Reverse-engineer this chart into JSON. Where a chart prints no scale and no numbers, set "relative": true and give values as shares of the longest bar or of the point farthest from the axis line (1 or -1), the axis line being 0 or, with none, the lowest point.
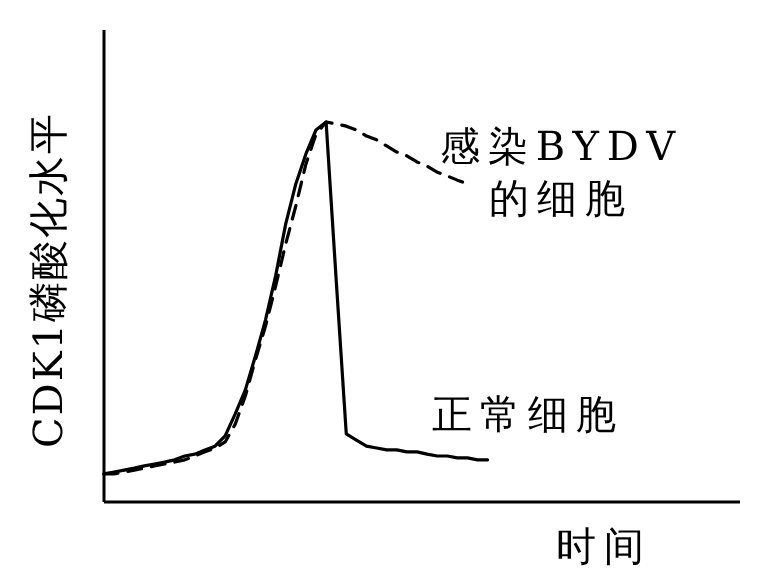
{
  "chart_data": {
    "type": "line",
    "relative": true,
    "ylabel": "CDK1磷酸化水平",
    "xlabel": "时间",
    "legend": false,
    "marker": "none",
    "categories": [
      null,
      null,
      null,
      null,
      null,
      null,
      null,
      null,
      null,
      null,
      null,
      null,
      null,
      null,
      null,
      null,
      null,
      null,
      null,
      null,
      null,
      null,
      null,
      null,
      null,
      null,
      null,
      null,
      null,
      null,
      null,
      null,
      null,
      null,
      null,
      null,
      null,
      null,
      null,
      null,
      null,
      null,
      null,
      null,
      null,
      null,
      null,
      null,
      null,
      null,
      null,
      null,
      null,
      null,
      null,
      null,
      null,
      null,
      null,
      null,
      null,
      null,
      null,
      null
    ],
    "series": [
      {
        "name": "正常细胞",
        "color": "#000000",
        "line_style": "solid",
        "values": [
          0.074,
          0.079,
          0.084,
          0.089,
          0.095,
          0.1,
          0.105,
          0.111,
          0.121,
          0.126,
          0.137,
          0.147,
          0.174,
          0.232,
          0.295,
          0.384,
          0.479,
          0.595,
          0.732,
          0.837,
          0.916,
          0.979,
          1.0,
          0.584,
          0.179,
          0.163,
          0.147,
          0.142,
          0.137,
          0.137,
          0.132,
          0.132,
          0.126,
          0.121,
          0.121,
          0.116,
          0.116,
          0.111,
          0.111,
          null,
          null,
          null,
          null,
          null,
          null,
          null,
          null,
          null,
          null,
          null,
          null,
          null,
          null,
          null,
          null,
          null,
          null,
          null,
          null,
          null,
          null,
          null,
          null,
          null
        ]
      },
      {
        "name": "感染BYDV的细胞",
        "color": "#000000",
        "line_style": "dashed",
        "values": [
          0.074,
          0.074,
          0.079,
          0.084,
          0.089,
          0.095,
          0.1,
          0.105,
          0.111,
          0.121,
          0.132,
          0.142,
          0.158,
          0.205,
          0.279,
          0.374,
          0.463,
          0.568,
          0.679,
          0.779,
          0.889,
          0.968,
          1.0,
          0.995,
          0.989,
          0.979,
          0.963,
          0.953,
          0.937,
          0.921,
          0.911,
          0.895,
          0.884,
          0.868,
          0.858,
          0.847,
          0.837,
          null,
          null,
          null,
          null,
          null,
          null,
          null,
          null,
          null,
          null,
          null,
          null,
          null,
          null,
          null,
          null,
          null,
          null,
          null,
          null,
          null,
          null,
          null,
          null,
          null,
          null,
          null
        ]
      }
    ]
  }
}
